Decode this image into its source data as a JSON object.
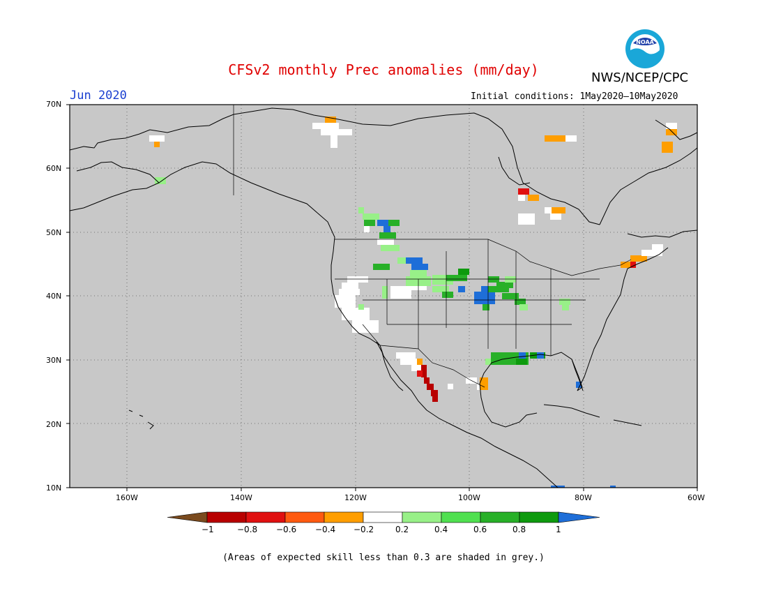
{
  "header": {
    "title": "CFSv2 monthly Prec anomalies (mm/day)",
    "org": "NWS/NCEP/CPC",
    "month": "Jun 2020",
    "initial_conditions": "Initial conditions: 1May2020–10May2020"
  },
  "axes": {
    "lat_labels": [
      "70N",
      "60N",
      "50N",
      "40N",
      "30N",
      "20N",
      "10N"
    ],
    "lon_labels": [
      "160W",
      "140W",
      "120W",
      "100W",
      "80W",
      "60W"
    ]
  },
  "colorbar": {
    "labels": [
      "−1",
      "−0.8",
      "−0.6",
      "−0.4",
      "−0.2",
      "0.2",
      "0.4",
      "0.6",
      "0.8",
      "1"
    ],
    "colors": [
      "#7a4a1e",
      "#b80000",
      "#e01010",
      "#ff5a10",
      "#ff9e00",
      "#ffffff",
      "#98f088",
      "#50e050",
      "#28b028",
      "#0e9a0e",
      "#1e6ed8"
    ]
  },
  "footnote": "(Areas of expected skill less than 0.3 are shaded in grey.)",
  "map_colors": {
    "background": "#c8c8c8",
    "coast": "#000000",
    "grid": "#555555",
    "brown": "#7a4a1e",
    "darkred": "#b80000",
    "red": "#e01010",
    "orange_red": "#ff5a10",
    "orange": "#ff9e00",
    "white": "#ffffff",
    "lightgreen": "#98f088",
    "green": "#50e050",
    "midgreen": "#28b028",
    "darkgreen": "#0e9a0e",
    "blue": "#1e6ed8"
  },
  "logo": {
    "icon": "noaa-logo-icon",
    "text": "NOAA"
  }
}
